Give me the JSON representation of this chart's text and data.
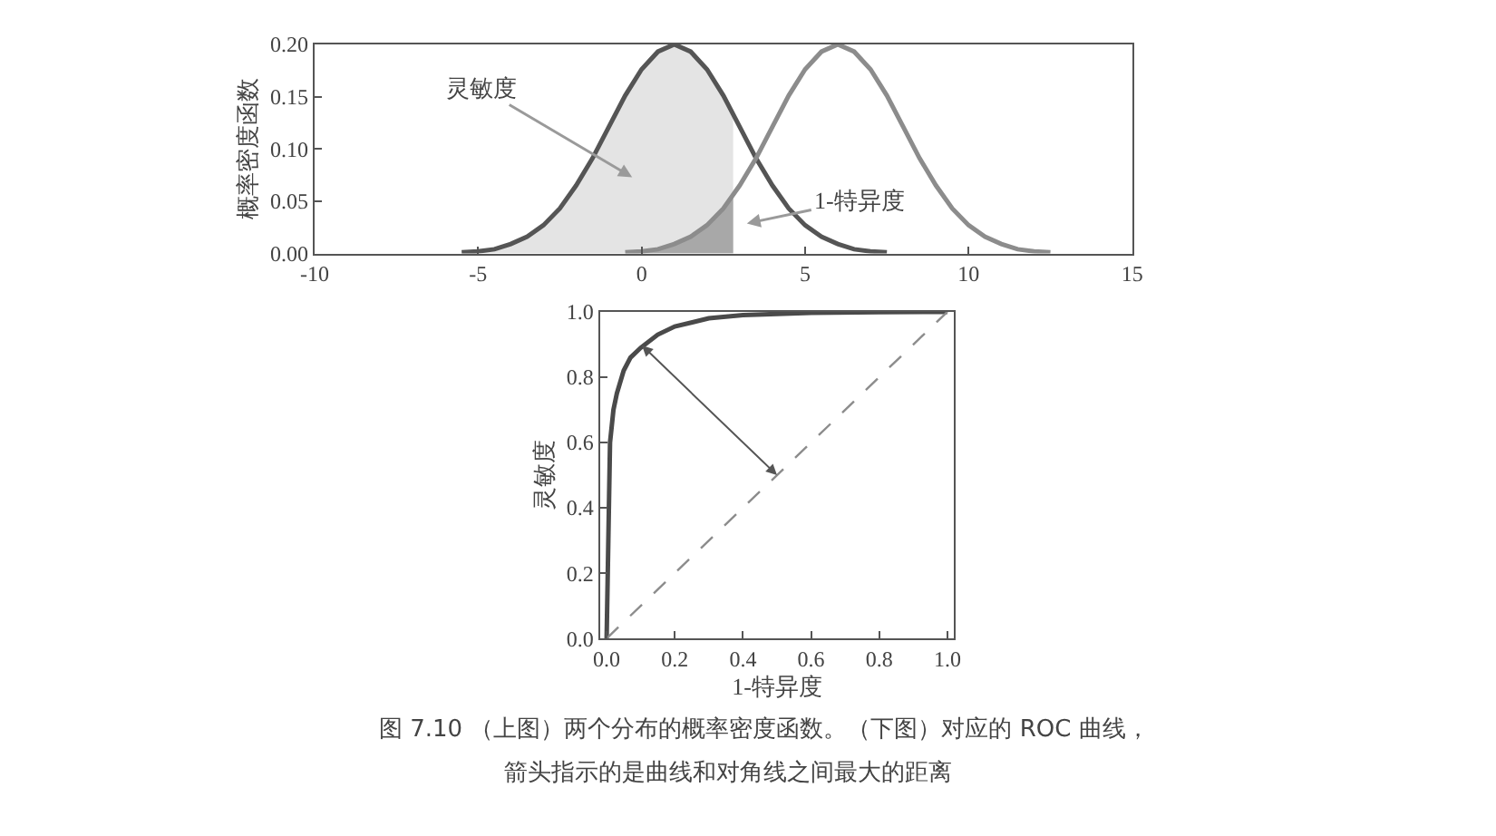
{
  "chart_data": [
    {
      "type": "line",
      "ylabel": "概率密度函数",
      "xlim": [
        -10,
        15
      ],
      "xticks": [
        -10,
        -5,
        0,
        5,
        10,
        15
      ],
      "ylim": [
        0,
        0.2
      ],
      "yticks": [
        {
          "value": 0,
          "label": "0.00"
        },
        {
          "value": 0.05,
          "label": "0.05"
        },
        {
          "value": 0.1,
          "label": "0.10"
        },
        {
          "value": 0.15,
          "label": "0.15"
        },
        {
          "value": 0.2,
          "label": "0.20"
        }
      ],
      "marker": "none",
      "series": [
        {
          "type": "area",
          "color": "#e4e4e4",
          "x": [
            -5.5,
            -5,
            -4.5,
            -4,
            -3.5,
            -3,
            -2.5,
            -2,
            -1.5,
            -1,
            -0.5,
            0,
            0.5,
            1,
            1.5,
            2,
            2.5,
            2.8
          ],
          "values": [
            0.001,
            0.002,
            0.004,
            0.009,
            0.016,
            0.027,
            0.043,
            0.065,
            0.091,
            0.121,
            0.151,
            0.176,
            0.193,
            0.2,
            0.193,
            0.176,
            0.151,
            0.133
          ]
        },
        {
          "type": "area",
          "color": "#a8a8a8",
          "x": [
            0,
            0.5,
            1,
            1.5,
            2,
            2.5,
            2.8
          ],
          "values": [
            0.002,
            0.004,
            0.009,
            0.016,
            0.027,
            0.043,
            0.055
          ]
        },
        {
          "type": "line",
          "color": "#555555",
          "x": [
            -5.5,
            -5,
            -4.5,
            -4,
            -3.5,
            -3,
            -2.5,
            -2,
            -1.5,
            -1,
            -0.5,
            0,
            0.5,
            1,
            1.5,
            2,
            2.5,
            3,
            3.5,
            4,
            4.5,
            5,
            5.5,
            6,
            6.5,
            7,
            7.5
          ],
          "values": [
            0.001,
            0.002,
            0.004,
            0.009,
            0.016,
            0.027,
            0.043,
            0.065,
            0.091,
            0.121,
            0.151,
            0.176,
            0.193,
            0.2,
            0.193,
            0.176,
            0.151,
            0.121,
            0.091,
            0.065,
            0.043,
            0.027,
            0.016,
            0.009,
            0.004,
            0.002,
            0.001
          ]
        },
        {
          "type": "line",
          "color": "#8c8c8c",
          "x": [
            -0.5,
            0,
            0.5,
            1,
            1.5,
            2,
            2.5,
            3,
            3.5,
            4,
            4.5,
            5,
            5.5,
            6,
            6.5,
            7,
            7.5,
            8,
            8.5,
            9,
            9.5,
            10,
            10.5,
            11,
            11.5,
            12,
            12.5
          ],
          "values": [
            0.001,
            0.002,
            0.004,
            0.009,
            0.016,
            0.027,
            0.043,
            0.065,
            0.091,
            0.121,
            0.151,
            0.176,
            0.193,
            0.2,
            0.193,
            0.176,
            0.151,
            0.121,
            0.091,
            0.065,
            0.043,
            0.027,
            0.016,
            0.009,
            0.004,
            0.002,
            0.001
          ]
        }
      ],
      "annotations": [
        "灵敏度",
        "1-特异度"
      ]
    },
    {
      "type": "line",
      "xlabel": "1-特异度",
      "ylabel": "灵敏度",
      "xlim": [
        -0.02,
        1.02
      ],
      "xticks": [
        {
          "value": 0,
          "label": "0.0"
        },
        {
          "value": 0.2,
          "label": "0.2"
        },
        {
          "value": 0.4,
          "label": "0.4"
        },
        {
          "value": 0.6,
          "label": "0.6"
        },
        {
          "value": 0.8,
          "label": "0.8"
        },
        {
          "value": 1,
          "label": "1.0"
        }
      ],
      "ylim": [
        0,
        1
      ],
      "yticks": [
        {
          "value": 0,
          "label": "0.0"
        },
        {
          "value": 0.2,
          "label": "0.2"
        },
        {
          "value": 0.4,
          "label": "0.4"
        },
        {
          "value": 0.6,
          "label": "0.6"
        },
        {
          "value": 0.8,
          "label": "0.8"
        },
        {
          "value": 1,
          "label": "1.0"
        }
      ],
      "marker": "none",
      "series": [
        {
          "color": "#4a4a4a",
          "x": [
            0,
            0.005,
            0.01,
            0.02,
            0.03,
            0.05,
            0.07,
            0.1,
            0.15,
            0.2,
            0.3,
            0.4,
            0.6,
            0.8,
            1
          ],
          "values": [
            0,
            0.3,
            0.6,
            0.7,
            0.75,
            0.82,
            0.86,
            0.89,
            0.93,
            0.955,
            0.98,
            0.99,
            0.997,
            0.999,
            1
          ]
        },
        {
          "color": "#8c8c8c",
          "line_style": "dashed",
          "x": [
            0,
            1
          ],
          "values": [
            0,
            1
          ]
        }
      ],
      "annotations": [
        "图 7.10 （上图）两个分布的概率密度函数。（下图）对应的 ROC 曲线，",
        "箭头指示的是曲线和对角线之间最大的距离"
      ]
    }
  ]
}
